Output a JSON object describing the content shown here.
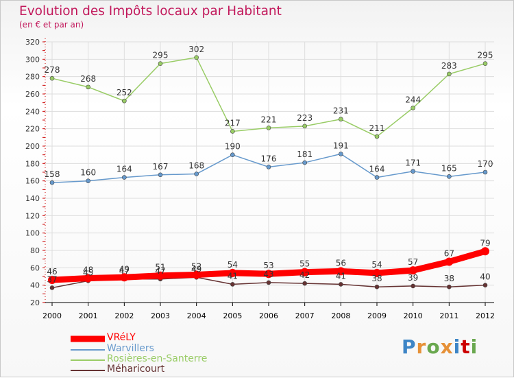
{
  "header": {
    "title": "Evolution des Impôts locaux par Habitant",
    "subtitle": "(en € et par an)"
  },
  "logo": {
    "letters": [
      "P",
      "r",
      "o",
      "x",
      "i",
      "t",
      "i"
    ]
  },
  "colors": {
    "title": "#c2185b",
    "axis": "#cc0000",
    "grid": "#dddddd",
    "label": "#333333"
  },
  "chart_data": {
    "type": "line",
    "title": "Evolution des Impôts locaux par Habitant",
    "subtitle": "(en € et par an)",
    "xlabel": "",
    "ylabel": "",
    "ylim": [
      20,
      320
    ],
    "y_ticks": [
      20,
      40,
      60,
      80,
      100,
      120,
      140,
      160,
      180,
      200,
      220,
      240,
      260,
      280,
      300,
      320
    ],
    "grid": true,
    "legend_position": "bottom-left",
    "x": [
      "2000",
      "2001",
      "2002",
      "2003",
      "2004",
      "2005",
      "2006",
      "2007",
      "2008",
      "2009",
      "2010",
      "2011",
      "2012"
    ],
    "series": [
      {
        "name": "Rosières-en-Santerre",
        "color": "#99cc66",
        "values": [
          278,
          268,
          252,
          295,
          302,
          217,
          221,
          223,
          231,
          211,
          244,
          283,
          295
        ]
      },
      {
        "name": "Warvillers",
        "color": "#6699cc",
        "values": [
          158,
          160,
          164,
          167,
          168,
          190,
          176,
          181,
          191,
          164,
          171,
          165,
          170
        ]
      },
      {
        "name": "Méharicourt",
        "color": "#663333",
        "values": [
          37,
          45,
          47,
          47,
          49,
          41,
          43,
          42,
          41,
          38,
          39,
          38,
          40
        ]
      },
      {
        "name": "VRéLY",
        "color": "#ff0000",
        "values": [
          46,
          48,
          49,
          51,
          52,
          54,
          53,
          55,
          56,
          54,
          57,
          67,
          79
        ]
      }
    ],
    "legend_order": [
      "VRéLY",
      "Warvillers",
      "Rosières-en-Santerre",
      "Méharicourt"
    ]
  }
}
